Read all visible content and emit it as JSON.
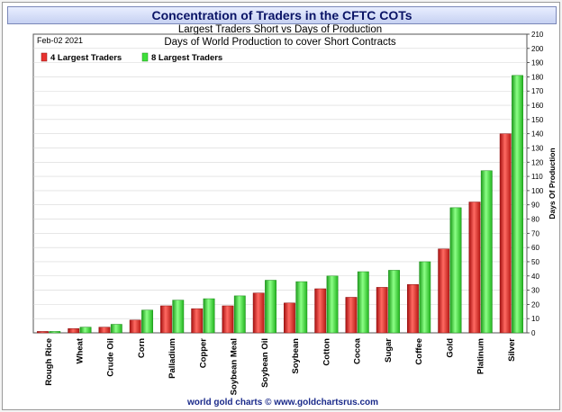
{
  "chart_data": {
    "type": "bar",
    "title": "Concentration of Traders in the CFTC COTs",
    "subtitle": "Largest Traders Short vs Days of Production",
    "subtitle2": "Days of World Production to cover Short Contracts",
    "date_label": "Feb-02  2021",
    "ylabel": "Days Of Production",
    "ylim": [
      0,
      210
    ],
    "ytick_step": 10,
    "grid": true,
    "legend_position": "top-left",
    "footer": "world gold charts © www.goldchartsrus.com",
    "categories": [
      "Rough Rice",
      "Wheat",
      "Crude Oil",
      "Corn",
      "Palladium",
      "Copper",
      "Soybean Meal",
      "Soybean Oil",
      "Soybean",
      "Cotton",
      "Cocoa",
      "Sugar",
      "Coffee",
      "Gold",
      "Platinum",
      "Silver"
    ],
    "series": [
      {
        "name": "4 Largest Traders",
        "color": "#e8322f",
        "values": [
          1,
          3,
          4,
          9,
          19,
          17,
          19,
          28,
          21,
          31,
          25,
          32,
          34,
          59,
          92,
          140
        ]
      },
      {
        "name": "8 Largest Traders",
        "color": "#3ee03a",
        "values": [
          1,
          4,
          6,
          16,
          23,
          24,
          26,
          37,
          36,
          40,
          43,
          44,
          50,
          88,
          114,
          181
        ]
      }
    ]
  }
}
